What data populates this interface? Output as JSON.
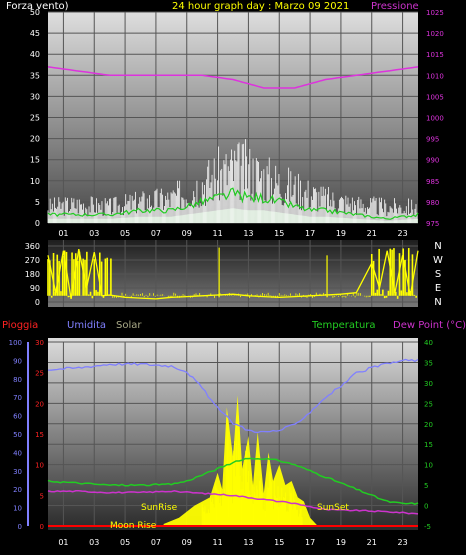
{
  "header": {
    "left_label": "Forza vento)",
    "center_title": "24 hour graph day : Marzo 09 2021",
    "right_label": "Pressione"
  },
  "labels": {
    "pioggia": "Pioggia",
    "umidita": "Umidita",
    "solar": "Solar",
    "temperatura": "Temperatura",
    "dew_point": "Dew Point (°C)",
    "sunrise": "SunRise",
    "sunset": "SunSet",
    "moonrise": "Moon Rise"
  },
  "colors": {
    "wind_gust": "#ffffff",
    "wind_avg": "#22cc22",
    "wind_fill": "#aaddaa",
    "pressure": "#dd33dd",
    "direction": "#ffff00",
    "humidity": "#8080ff",
    "temperature": "#22cc22",
    "dew_point": "#cc33cc",
    "solar": "#ffff00",
    "rain": "#ff0000",
    "grid": "#555555"
  },
  "chart_data": [
    {
      "type": "line",
      "panel": "wind-pressure",
      "x_ticks": [
        "01",
        "03",
        "05",
        "07",
        "09",
        "11",
        "13",
        "15",
        "17",
        "19",
        "21",
        "23"
      ],
      "left_axis": {
        "label": "Forza vento)",
        "ylim": [
          0,
          50
        ],
        "ticks": [
          0,
          5,
          10,
          15,
          20,
          25,
          30,
          35,
          40,
          45,
          50
        ]
      },
      "right_axis": {
        "label": "Pressione",
        "ylim": [
          975,
          1025
        ],
        "ticks": [
          975,
          980,
          985,
          990,
          995,
          1000,
          1005,
          1010,
          1015,
          1020,
          1025
        ]
      },
      "series": [
        {
          "name": "Pressione",
          "axis": "right",
          "x": [
            0,
            2,
            4,
            6,
            8,
            10,
            12,
            13,
            14,
            15,
            16,
            17,
            18,
            20,
            22,
            24
          ],
          "values": [
            1012,
            1011,
            1010,
            1010,
            1010,
            1010,
            1009,
            1008,
            1007,
            1007,
            1007,
            1008,
            1009,
            1010,
            1011,
            1012
          ]
        },
        {
          "axis": "left",
          "x": [
            0,
            2,
            4,
            6,
            8,
            9,
            10,
            11,
            12,
            13,
            14,
            15,
            16,
            17,
            18,
            20,
            22,
            24
          ],
          "values": [
            6,
            7,
            6,
            8,
            9,
            12,
            15,
            18,
            20,
            20,
            17,
            15,
            13,
            11,
            9,
            7,
            6,
            6
          ]
        },
        {
          "axis": "left",
          "x": [
            0,
            2,
            4,
            6,
            8,
            9,
            10,
            11,
            12,
            13,
            14,
            15,
            16,
            17,
            18,
            20,
            22,
            24
          ],
          "values": [
            2,
            2,
            2,
            3,
            3,
            4,
            5,
            6,
            7,
            6,
            6,
            5,
            4,
            3,
            3,
            2,
            1,
            2
          ]
        }
      ]
    },
    {
      "type": "line",
      "panel": "wind-direction",
      "x_ticks": [
        "01",
        "03",
        "05",
        "07",
        "09",
        "11",
        "13",
        "15",
        "17",
        "19",
        "21",
        "23"
      ],
      "left_axis": {
        "ylim": [
          0,
          360
        ],
        "ticks": [
          0,
          90,
          180,
          270,
          360
        ]
      },
      "right_axis": {
        "labels": [
          "N",
          "W",
          "S",
          "E",
          "N"
        ]
      },
      "series": [
        {
          "x": [
            0,
            0.5,
            1,
            1.5,
            2,
            2.5,
            3,
            3.5,
            4,
            5,
            6,
            7,
            8,
            9,
            10,
            11,
            12,
            13,
            14,
            15,
            16,
            17,
            18,
            19,
            20,
            21,
            21.5,
            22,
            22.5,
            23,
            23.5,
            24
          ],
          "values": [
            300,
            60,
            330,
            20,
            340,
            90,
            320,
            40,
            45,
            30,
            25,
            20,
            30,
            35,
            40,
            45,
            50,
            40,
            35,
            30,
            35,
            40,
            45,
            50,
            60,
            250,
            90,
            330,
            60,
            300,
            40,
            330
          ]
        }
      ]
    },
    {
      "type": "line",
      "panel": "temp-humidity-solar",
      "x_ticks": [
        "01",
        "03",
        "05",
        "07",
        "09",
        "11",
        "13",
        "15",
        "17",
        "19",
        "21",
        "23"
      ],
      "rain_axis": {
        "label": "Pioggia",
        "ylim": [
          0,
          30
        ],
        "ticks": [
          0,
          5,
          10,
          15,
          20,
          25,
          30
        ]
      },
      "humidity_axis": {
        "label": "Umidita",
        "ylim": [
          0,
          100
        ],
        "ticks": [
          0,
          10,
          20,
          30,
          40,
          50,
          60,
          70,
          80,
          90,
          100
        ]
      },
      "temperature_axis": {
        "label": "Temperatura",
        "ylim": [
          -5,
          40
        ],
        "ticks": [
          -5,
          0,
          5,
          10,
          15,
          20,
          25,
          30,
          35,
          40
        ]
      },
      "series": [
        {
          "name": "Umidita",
          "axis": "humidity",
          "x": [
            0,
            2,
            4,
            6,
            8,
            9,
            10,
            11,
            12,
            13,
            14,
            15,
            16,
            17,
            18,
            19,
            20,
            21,
            22,
            23,
            24
          ],
          "values": [
            85,
            86,
            88,
            88,
            87,
            84,
            75,
            64,
            56,
            52,
            51,
            52,
            55,
            62,
            70,
            76,
            83,
            86,
            88,
            90,
            90
          ]
        },
        {
          "name": "Temperatura",
          "axis": "temperature",
          "x": [
            0,
            2,
            4,
            6,
            8,
            9,
            10,
            11,
            12,
            13,
            14,
            15,
            16,
            17,
            18,
            19,
            20,
            21,
            22,
            23,
            24
          ],
          "values": [
            6,
            5.5,
            5,
            5,
            5.2,
            6,
            7.5,
            9,
            10.5,
            11.5,
            11.5,
            11,
            10,
            8.5,
            7,
            5.5,
            4,
            2.5,
            1,
            0.5,
            0.5
          ]
        },
        {
          "name": "Dew Point (°C)",
          "axis": "temperature",
          "x": [
            0,
            2,
            4,
            6,
            8,
            10,
            12,
            14,
            16,
            18,
            20,
            22,
            24
          ],
          "values": [
            3.5,
            3.5,
            3.2,
            3.2,
            3.5,
            3,
            2.5,
            1.5,
            0.5,
            -1,
            -1.2,
            -1.5,
            -2
          ]
        },
        {
          "name": "Solar",
          "axis": "temperature",
          "x": [
            7.5,
            8.5,
            9.5,
            10,
            10.5,
            11,
            11.3,
            11.6,
            12,
            12.3,
            12.6,
            13,
            13.3,
            13.6,
            14,
            14.3,
            14.6,
            15,
            15.4,
            15.8,
            16.2,
            16.6,
            17,
            17.5
          ],
          "values": [
            -4.5,
            -3,
            0,
            1,
            2,
            8,
            4,
            24,
            12,
            27,
            9,
            17,
            5,
            18,
            3,
            13,
            6,
            10,
            5,
            6,
            2,
            1,
            -3,
            -5
          ]
        },
        {
          "name": "Pioggia",
          "axis": "rain",
          "x": [
            0,
            24
          ],
          "values": [
            0,
            0
          ]
        }
      ]
    }
  ]
}
